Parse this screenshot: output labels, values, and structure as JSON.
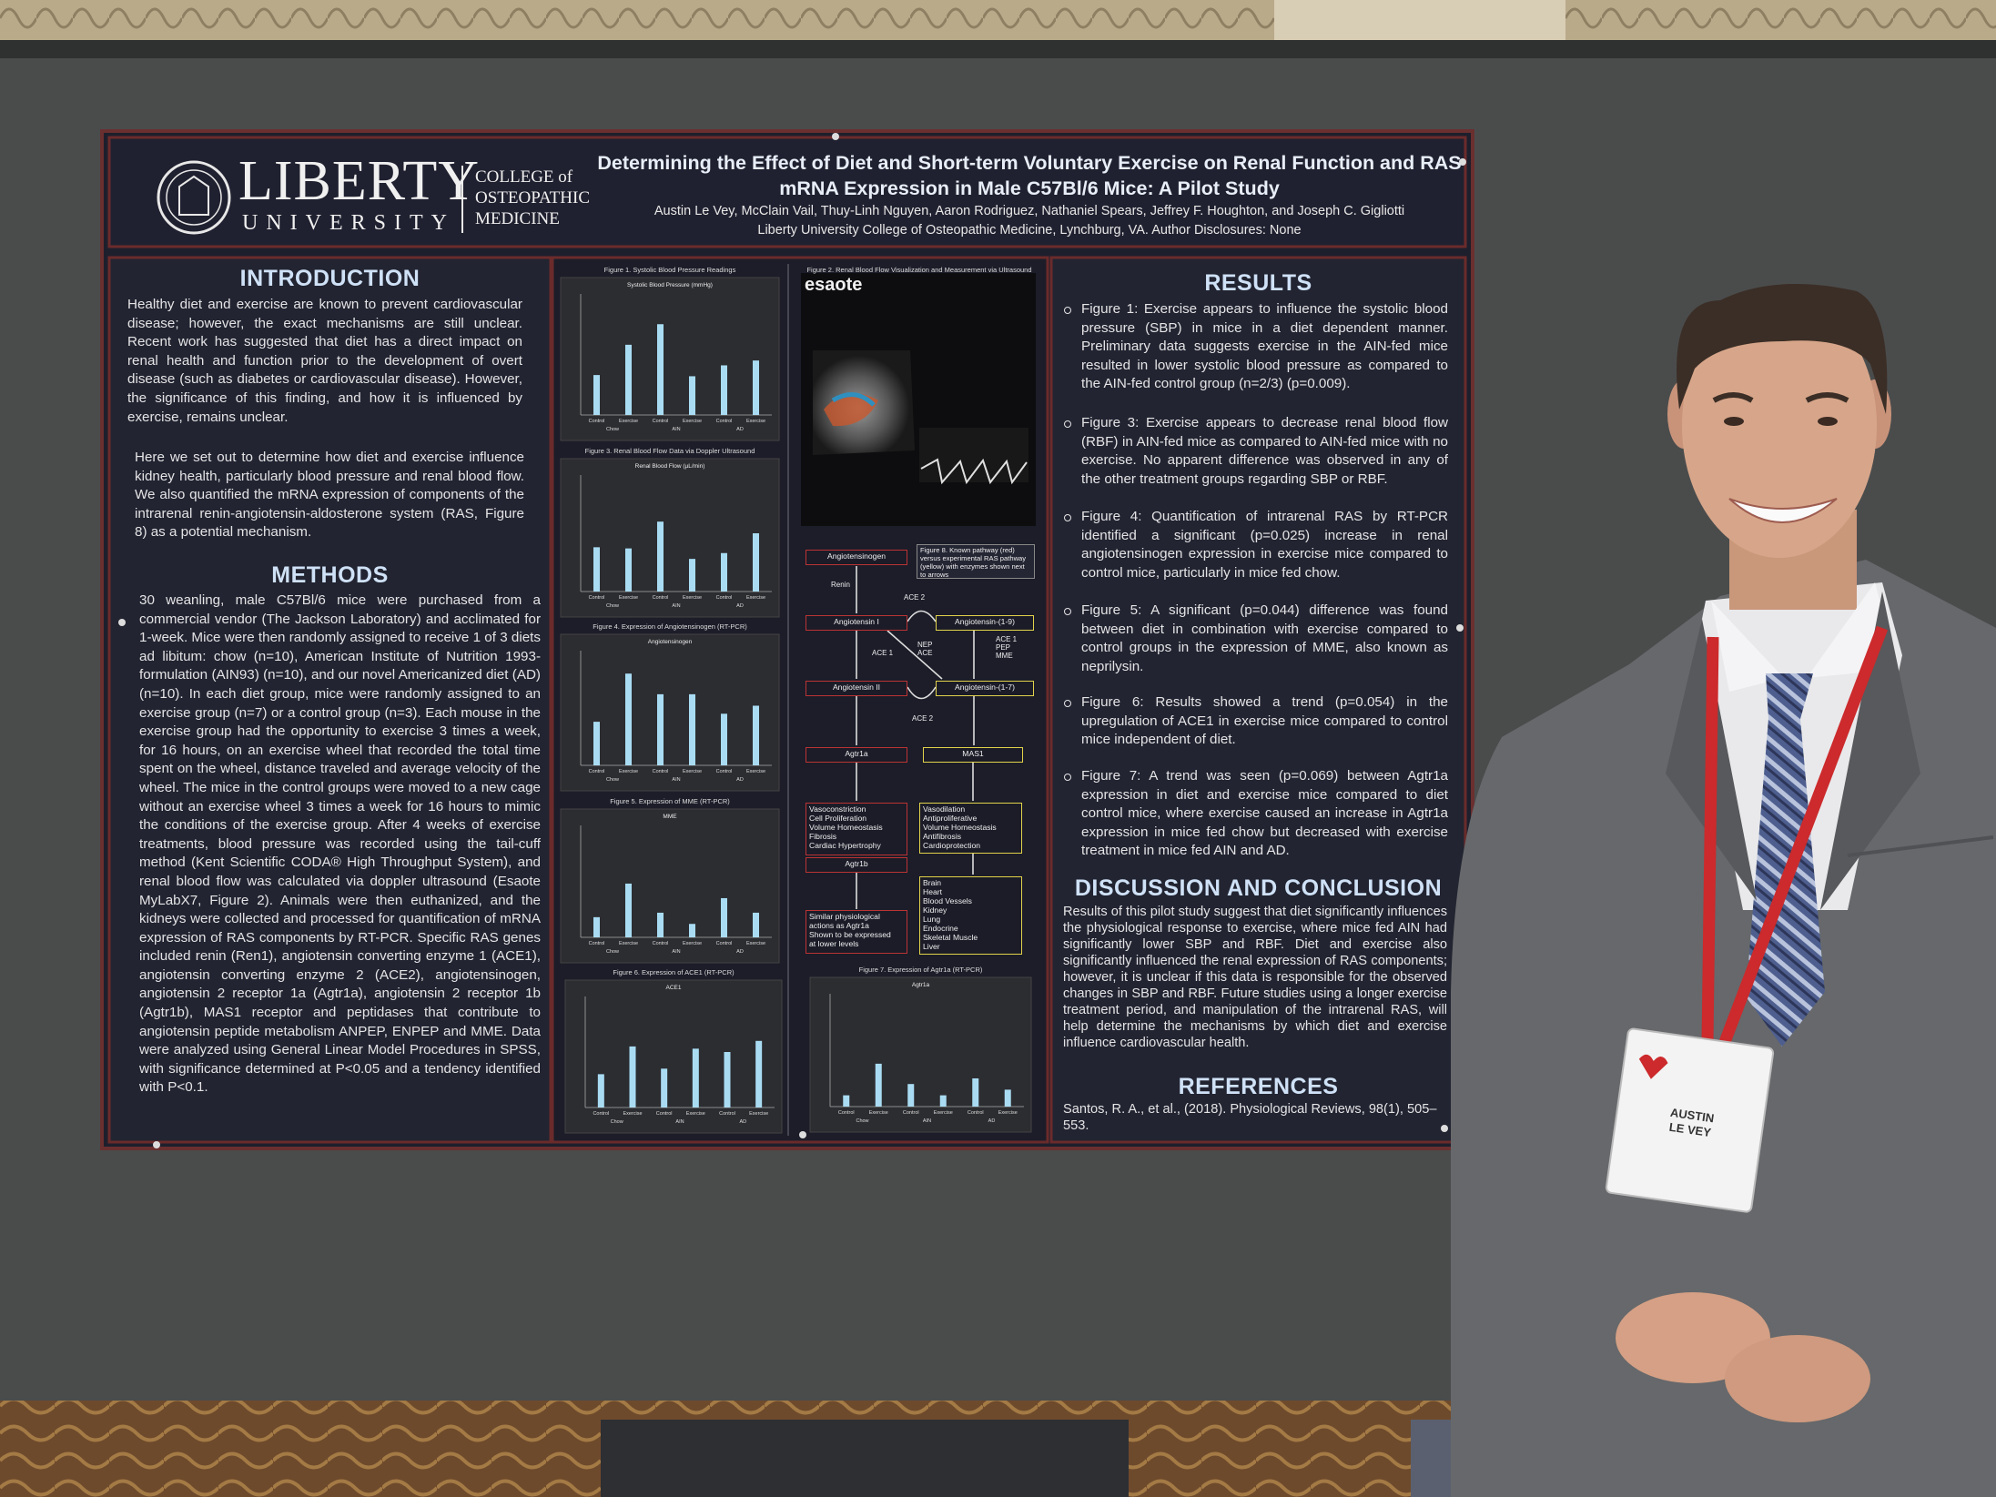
{
  "header": {
    "logo_name": "LIBERTY",
    "logo_sub": "UNIVERSITY",
    "college": [
      "COLLEGE of",
      "OSTEOPATHIC",
      "MEDICINE"
    ],
    "title": "Determining the Effect of Diet and Short-term Voluntary Exercise on Renal Function and RAS mRNA Expression in Male C57Bl/6 Mice: A Pilot Study",
    "authors": "Austin Le Vey, McClain Vail, Thuy-Linh Nguyen, Aaron Rodriguez, Nathaniel Spears, Jeffrey F. Houghton, and Joseph C. Gigliotti",
    "affiliation": "Liberty University College of Osteopathic Medicine, Lynchburg, VA. Author Disclosures: None"
  },
  "introduction": {
    "heading": "INTRODUCTION",
    "paragraphs": [
      "Healthy diet and exercise are known to prevent cardiovascular disease; however, the exact mechanisms are still unclear. Recent work has suggested that diet has a direct impact on renal health and function prior to the development of overt disease (such as diabetes or cardiovascular disease). However, the significance of this finding, and how it is influenced by exercise, remains unclear.",
      "Here we set out to determine how diet and exercise influence kidney health, particularly blood pressure and renal blood flow. We also quantified the mRNA expression of components of the intrarenal renin-angiotensin-aldosterone system (RAS, Figure 8) as a potential mechanism."
    ]
  },
  "methods": {
    "heading": "METHODS",
    "text": "30 weanling, male C57Bl/6 mice were purchased from a commercial vendor (The Jackson Laboratory) and acclimated for 1-week. Mice were then randomly assigned to receive 1 of 3 diets ad libitum: chow (n=10), American Institute of Nutrition 1993-formulation (AIN93) (n=10), and our novel Americanized diet (AD) (n=10). In each diet group, mice were randomly assigned to an exercise group (n=7) or a control group (n=3). Each mouse in the exercise group had the opportunity to exercise 3 times a week, for 16 hours, on an exercise wheel that recorded the total time spent on the wheel, distance traveled and average velocity of the wheel. The mice in the control groups were moved to a new cage without an exercise wheel 3 times a week for 16 hours to mimic the conditions of the exercise group. After 4 weeks of exercise treatments, blood pressure was recorded using the tail-cuff method (Kent Scientific CODA® High Throughput System), and renal blood flow was calculated via doppler ultrasound (Esaote MyLabX7, Figure 2). Animals were then euthanized, and the kidneys were collected and processed for quantification of mRNA expression of RAS components by RT-PCR. Specific RAS genes included renin (Ren1), angiotensin converting enzyme 1 (ACE1), angiotensin converting enzyme 2 (ACE2), angiotensinogen, angiotensin 2 receptor 1a (Agtr1a), angiotensin 2 receptor 1b (Agtr1b), MAS1 receptor and peptidases that contribute to angiotensin peptide metabolism ANPEP, ENPEP and MME. Data were analyzed using General Linear Model Procedures in SPSS, with significance determined at P<0.05 and a tendency identified with P<0.1."
  },
  "figure_axis": {
    "categories": [
      "Control",
      "Exercise",
      "Control",
      "Exercise",
      "Control",
      "Exercise"
    ],
    "groups": [
      "Chow",
      "AIN",
      "AD"
    ]
  },
  "figures": [
    {
      "title": "Figure 1. Systolic Blood Pressure Readings",
      "chart_title": "Systolic Blood Pressure (mmHg)",
      "ylim": [
        0,
        100
      ],
      "values": [
        33,
        58,
        75,
        32,
        41,
        45
      ]
    },
    {
      "title": "Figure 3. Renal Blood Flow Data via Doppler Ultrasound",
      "chart_title": "Renal Blood Flow (µL/min)",
      "ylim": [
        0,
        100
      ],
      "values": [
        38,
        37,
        60,
        28,
        33,
        50
      ]
    },
    {
      "title": "Figure 4. Expression of Angiotensinogen (RT-PCR)",
      "chart_title": "Angiotensinogen",
      "ylim": [
        0,
        100
      ],
      "values": [
        38,
        80,
        62,
        62,
        45,
        52
      ]
    },
    {
      "title": "Figure 5. Expression of MME (RT-PCR)",
      "chart_title": "MME",
      "ylim": [
        0,
        100
      ],
      "values": [
        18,
        48,
        22,
        12,
        35,
        22
      ]
    },
    {
      "title": "Figure 6. Expression of ACE1 (RT-PCR)",
      "chart_title": "ACE1",
      "ylim": [
        0,
        100
      ],
      "values": [
        30,
        55,
        35,
        53,
        50,
        60
      ]
    },
    {
      "title": "Figure 7. Expression of Agtr1a (RT-PCR)",
      "chart_title": "Agtr1a",
      "ylim": [
        0,
        100
      ],
      "values": [
        10,
        38,
        20,
        10,
        25,
        15
      ]
    }
  ],
  "ultrasound": {
    "title": "Figure 2. Renal Blood Flow Visualization and Measurement via Ultrasound",
    "brand": "esaote"
  },
  "flowchart": {
    "nodes": [
      {
        "lines": [
          "Angiotensinogen"
        ]
      },
      {
        "lines": [
          "Figure 8. Known pathway (red)",
          "versus experimental RAS pathway",
          "(yellow) with enzymes shown next",
          "to arrows"
        ]
      },
      {
        "lines": [
          "Angiotensin I"
        ]
      },
      {
        "lines": [
          "Angiotensin-(1-9)"
        ]
      },
      {
        "lines": [
          "Angiotensin II"
        ]
      },
      {
        "lines": [
          "Angiotensin-(1-7)"
        ]
      },
      {
        "lines": [
          "Agtr1a"
        ]
      },
      {
        "lines": [
          "MAS1"
        ]
      },
      {
        "lines": [
          "Vasoconstriction",
          "Cell Proliferation",
          "Volume Homeostasis",
          "Fibrosis",
          "Cardiac Hypertrophy"
        ]
      },
      {
        "lines": [
          "Vasodilation",
          "Antiproliferative",
          "Volume Homeostasis",
          "Antifibrosis",
          "Cardioprotection"
        ]
      },
      {
        "lines": [
          "Agtr1b"
        ]
      },
      {
        "lines": [
          "Similar physiological",
          "actions as Agtr1a",
          "Shown to be expressed",
          "at lower levels"
        ]
      },
      {
        "lines": [
          "Brain",
          "Heart",
          "Blood Vessels",
          "Kidney",
          "Lung",
          "Endocrine",
          "Skeletal Muscle",
          "Liver"
        ]
      }
    ],
    "edge_labels": [
      "Renin",
      "ACE 2",
      "ACE 1",
      "NEP ACE",
      "ACE 1 PEP MME",
      "ACE 2"
    ]
  },
  "results": {
    "heading": "RESULTS",
    "items": [
      "Figure 1: Exercise appears to influence the systolic blood pressure (SBP) in mice in a diet dependent manner. Preliminary data suggests exercise in the AIN-fed mice resulted in lower systolic blood pressure as compared to the AIN-fed control group (n=2/3) (p=0.009).",
      "Figure 3: Exercise appears to decrease renal blood flow (RBF) in AIN-fed mice as compared to AIN-fed mice with no exercise. No apparent difference was observed in any of the other treatment groups regarding SBP or RBF.",
      "Figure 4: Quantification of intrarenal RAS by RT-PCR identified a significant (p=0.025) increase in renal angiotensinogen expression in exercise mice compared to control mice, particularly in mice fed chow.",
      "Figure 5: A significant (p=0.044) difference was found between diet in combination with exercise compared to control groups in the expression of MME, also known as neprilysin.",
      "Figure 6: Results showed a trend (p=0.054) in the upregulation of ACE1 in exercise mice compared to control mice independent of diet.",
      "Figure 7: A trend was seen (p=0.069) between Agtr1a expression in diet and exercise mice compared to diet control mice, where exercise caused an increase in Agtr1a expression in mice fed chow but decreased with exercise treatment in mice fed AIN and AD."
    ]
  },
  "discussion": {
    "heading": "DISCUSSION AND CONCLUSION",
    "text": "Results of this pilot study suggest that diet significantly influences the physiological response to exercise, where mice fed AIN had significantly lower SBP and RBF. Diet and exercise also significantly influenced the renal expression of RAS components; however, it is unclear if this data is responsible for the observed changes in SBP and RBF. Future studies using a longer exercise treatment period, and manipulation of the intrarenal RAS, will help determine the mechanisms by which diet and exercise influence cardiovascular health."
  },
  "references": {
    "heading": "REFERENCES",
    "text": "Santos, R. A., et al., (2018). Physiological Reviews, 98(1), 505–553."
  },
  "badge": {
    "first": "AUSTIN",
    "last": "LE VEY"
  }
}
